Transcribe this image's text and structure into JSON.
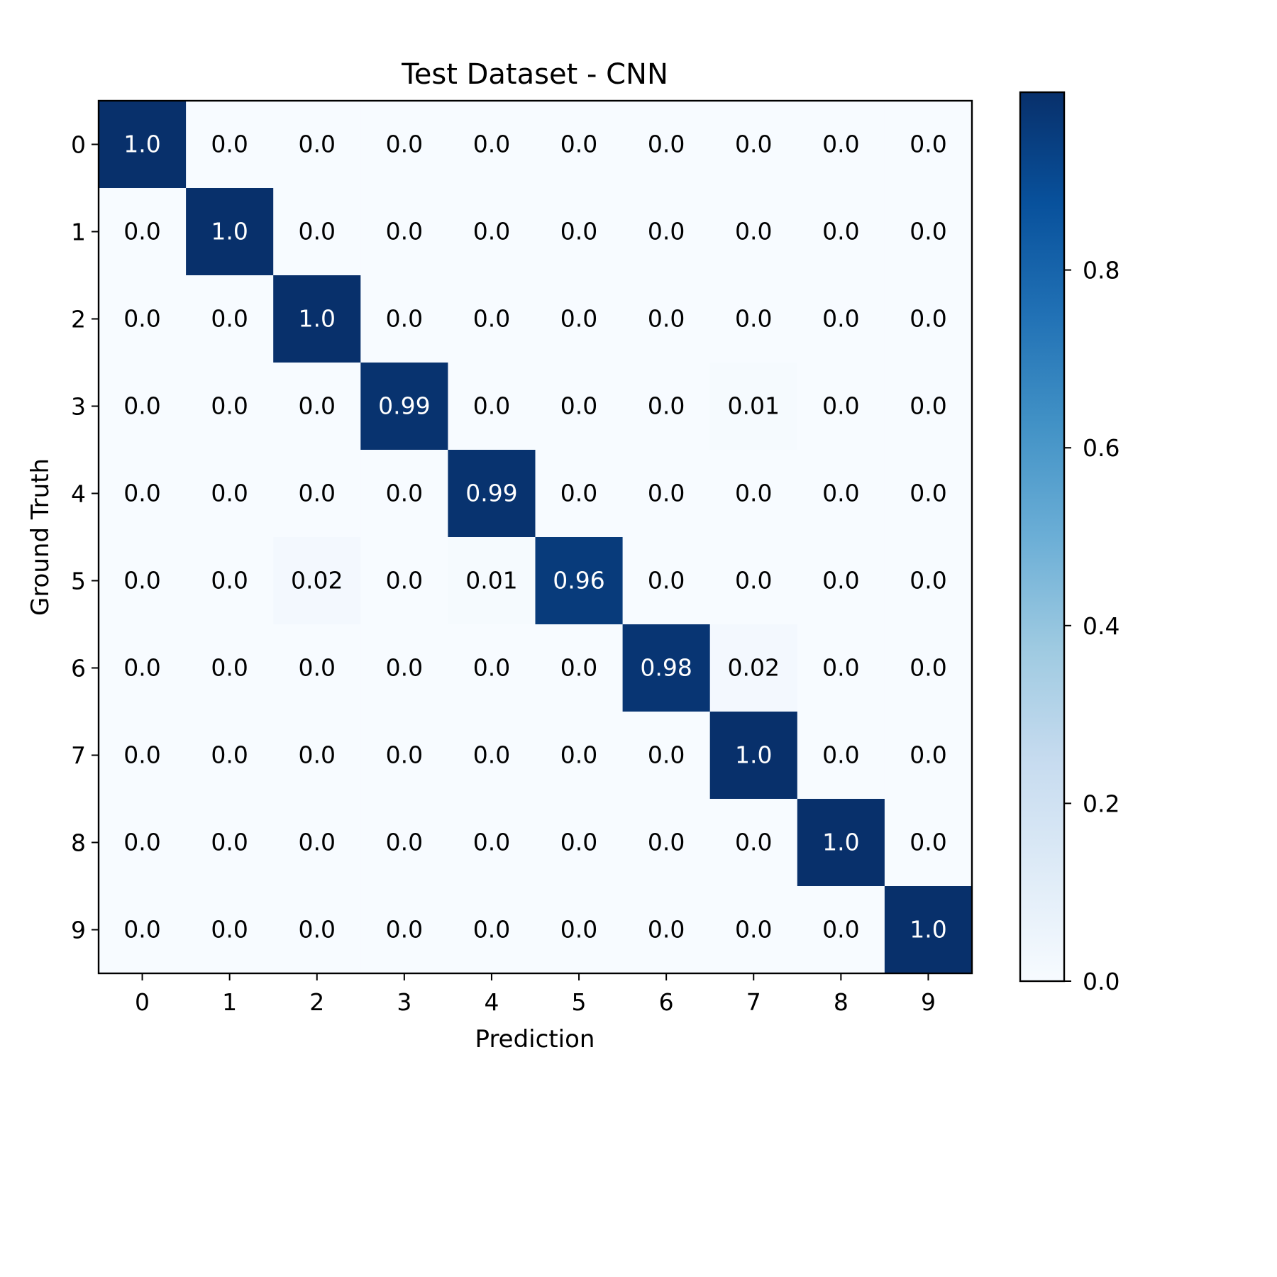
{
  "chart_data": {
    "type": "heatmap",
    "title": "Test Dataset - CNN",
    "xlabel": "Prediction",
    "ylabel": "Ground Truth",
    "x_categories": [
      "0",
      "1",
      "2",
      "3",
      "4",
      "5",
      "6",
      "7",
      "8",
      "9"
    ],
    "y_categories": [
      "0",
      "1",
      "2",
      "3",
      "4",
      "5",
      "6",
      "7",
      "8",
      "9"
    ],
    "cell_labels": [
      [
        "1.0",
        "0.0",
        "0.0",
        "0.0",
        "0.0",
        "0.0",
        "0.0",
        "0.0",
        "0.0",
        "0.0"
      ],
      [
        "0.0",
        "1.0",
        "0.0",
        "0.0",
        "0.0",
        "0.0",
        "0.0",
        "0.0",
        "0.0",
        "0.0"
      ],
      [
        "0.0",
        "0.0",
        "1.0",
        "0.0",
        "0.0",
        "0.0",
        "0.0",
        "0.0",
        "0.0",
        "0.0"
      ],
      [
        "0.0",
        "0.0",
        "0.0",
        "0.99",
        "0.0",
        "0.0",
        "0.0",
        "0.01",
        "0.0",
        "0.0"
      ],
      [
        "0.0",
        "0.0",
        "0.0",
        "0.0",
        "0.99",
        "0.0",
        "0.0",
        "0.0",
        "0.0",
        "0.0"
      ],
      [
        "0.0",
        "0.0",
        "0.02",
        "0.0",
        "0.01",
        "0.96",
        "0.0",
        "0.0",
        "0.0",
        "0.0"
      ],
      [
        "0.0",
        "0.0",
        "0.0",
        "0.0",
        "0.0",
        "0.0",
        "0.98",
        "0.02",
        "0.0",
        "0.0"
      ],
      [
        "0.0",
        "0.0",
        "0.0",
        "0.0",
        "0.0",
        "0.0",
        "0.0",
        "1.0",
        "0.0",
        "0.0"
      ],
      [
        "0.0",
        "0.0",
        "0.0",
        "0.0",
        "0.0",
        "0.0",
        "0.0",
        "0.0",
        "1.0",
        "0.0"
      ],
      [
        "0.0",
        "0.0",
        "0.0",
        "0.0",
        "0.0",
        "0.0",
        "0.0",
        "0.0",
        "0.0",
        "1.0"
      ]
    ],
    "colorbar": {
      "colormap": "Blues",
      "range": [
        0,
        1
      ],
      "tick_values": [
        0,
        0.2,
        0.4,
        0.6,
        0.8
      ],
      "tick_labels": [
        "0.0",
        "0.2",
        "0.4",
        "0.6",
        "0.8"
      ]
    },
    "legend": "none",
    "grid": false
  }
}
